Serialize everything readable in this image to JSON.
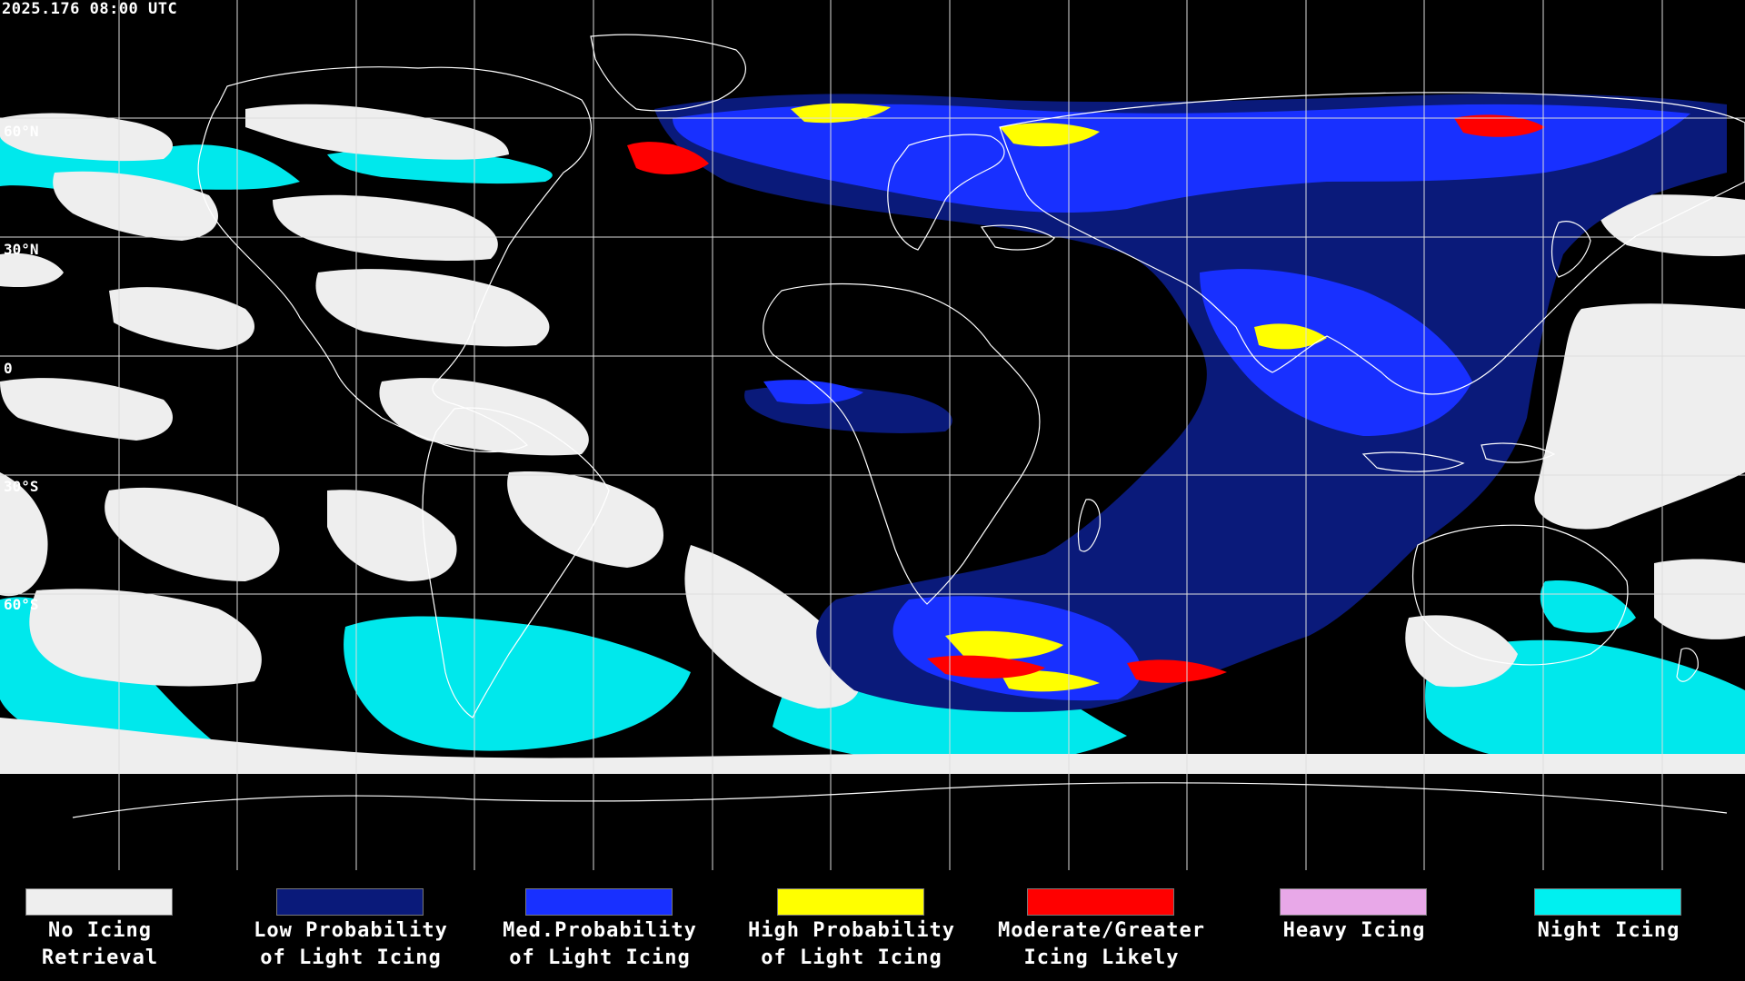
{
  "timestamp": "2025.176 08:00 UTC",
  "latitude_labels": [
    "60°N",
    "30°N",
    "0",
    "30°S",
    "60°S"
  ],
  "colors": {
    "background": "#000000",
    "grid": "#dddddd",
    "coastline": "#ffffff",
    "no_icing": "#eeeeee",
    "low_prob": "#0a1a7a",
    "med_prob": "#1830ff",
    "high_prob": "#ffff00",
    "moderate": "#ff0000",
    "heavy": "#e8a8e8",
    "night": "#00f0f0"
  },
  "legend": [
    {
      "line1": "No Icing",
      "line2": "Retrieval",
      "color": "#eeeeee",
      "icon": "no-icing-swatch"
    },
    {
      "line1": "Low Probability",
      "line2": "of Light Icing",
      "color": "#0a1a7a",
      "icon": "low-probability-swatch"
    },
    {
      "line1": "Med.Probability",
      "line2": "of Light Icing",
      "color": "#1830ff",
      "icon": "med-probability-swatch"
    },
    {
      "line1": "High Probability",
      "line2": "of Light Icing",
      "color": "#ffff00",
      "icon": "high-probability-swatch"
    },
    {
      "line1": "Moderate/Greater",
      "line2": "Icing Likely",
      "color": "#ff0000",
      "icon": "moderate-icing-swatch"
    },
    {
      "line1": "Heavy Icing",
      "line2": "",
      "color": "#e8a8e8",
      "icon": "heavy-icing-swatch"
    },
    {
      "line1": "Night Icing",
      "line2": "",
      "color": "#00f0f0",
      "icon": "night-icing-swatch"
    }
  ]
}
